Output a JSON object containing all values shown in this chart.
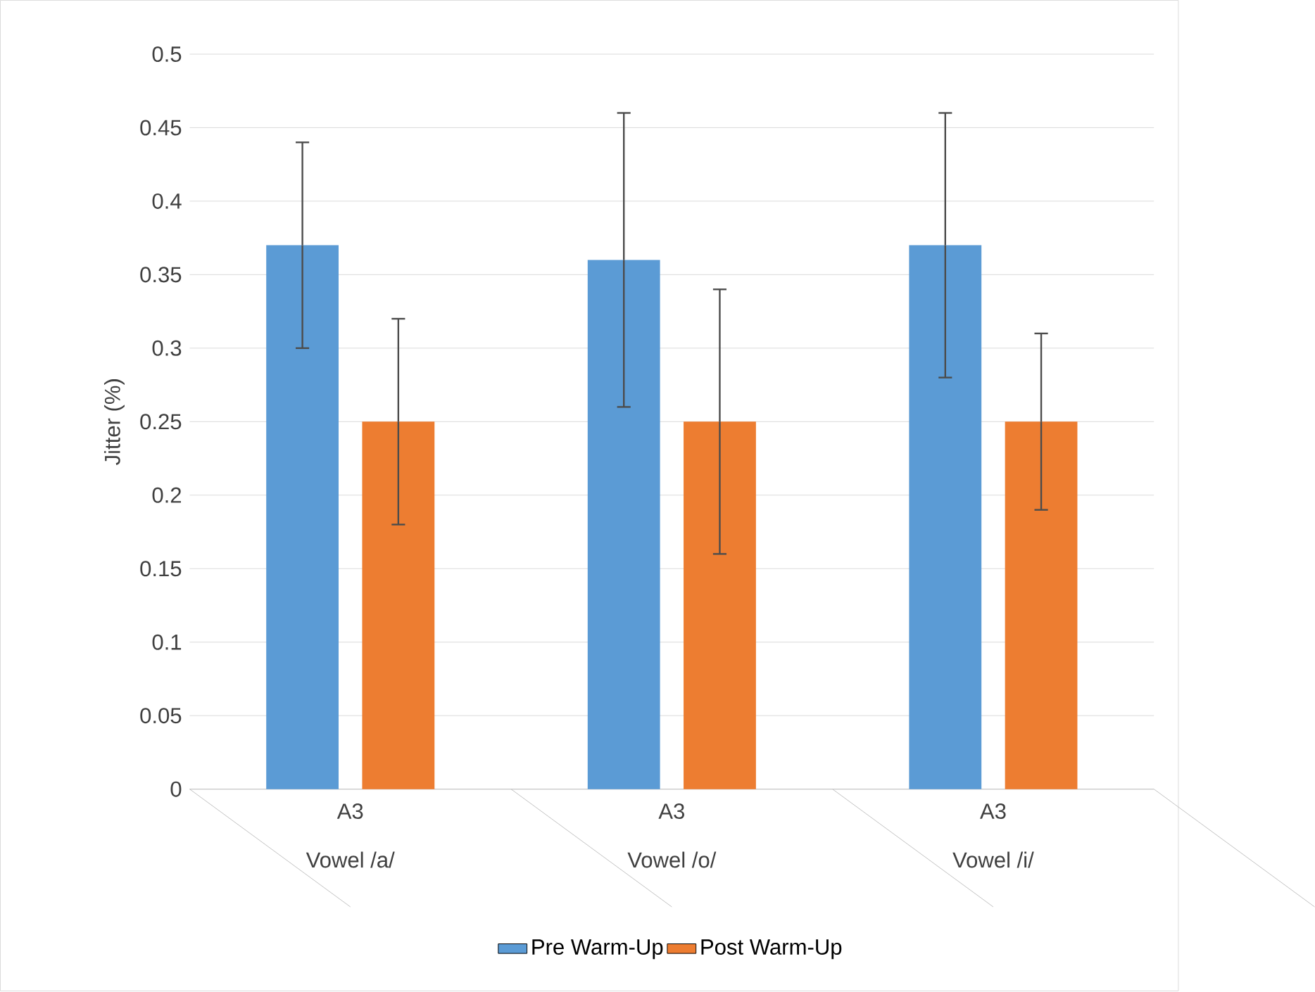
{
  "chart_data": {
    "type": "bar",
    "ylabel": "Jitter (%)",
    "categories": [
      "Vowel /a/",
      "Vowel /o/",
      "Vowel /i/"
    ],
    "annotations": [
      "A3",
      "A3",
      "A3"
    ],
    "series": [
      {
        "name": "Pre Warm-Up",
        "color": "#5b9bd5",
        "values": [
          0.37,
          0.36,
          0.37
        ],
        "errors": [
          0.07,
          0.1,
          0.09
        ]
      },
      {
        "name": "Post Warm-Up",
        "color": "#ed7d31",
        "values": [
          0.25,
          0.25,
          0.25
        ],
        "errors": [
          0.07,
          0.09,
          0.06
        ]
      }
    ],
    "ylim": [
      0,
      0.5
    ],
    "yticks": [
      0,
      0.05,
      0.1,
      0.15,
      0.2,
      0.25,
      0.3,
      0.35,
      0.4,
      0.45,
      0.5
    ],
    "grid": "y",
    "legend": "bottom"
  }
}
